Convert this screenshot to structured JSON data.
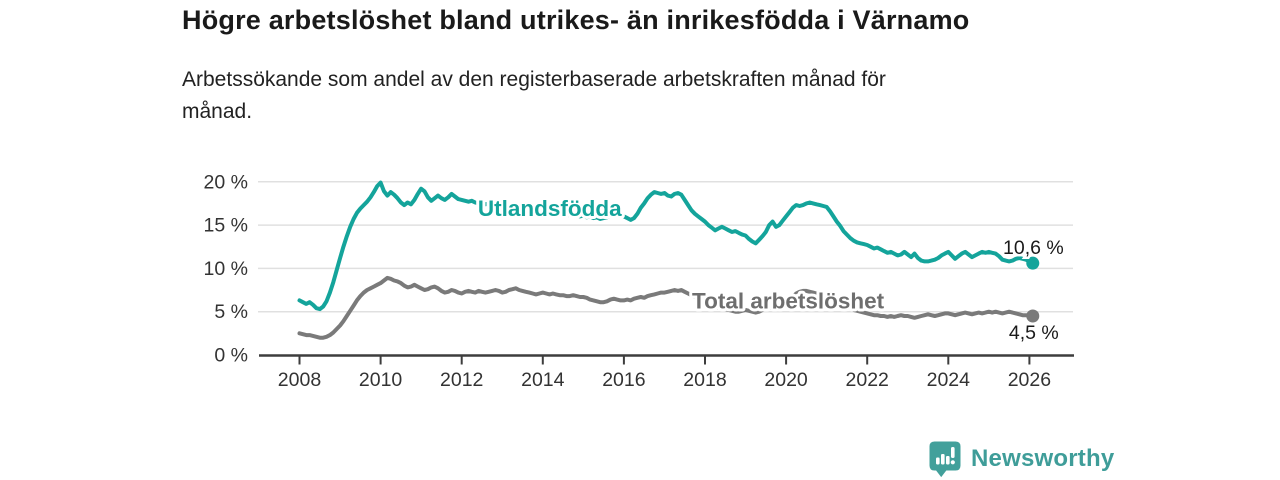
{
  "header": {
    "title": "Högre arbetslöshet bland utrikes- än inrikesfödda i Värnamo",
    "subtitle": "Arbetssökande som andel av den registerbaserade arbetskraften månad för\nmånad."
  },
  "branding": {
    "name": "Newsworthy",
    "icon": "bar-chart-bubble-icon",
    "color": "#3f9d99"
  },
  "chart_data": {
    "type": "line",
    "title": "Högre arbetslöshet bland utrikes- än inrikesfödda i Värnamo",
    "subtitle": "Arbetssökande som andel av den registerbaserade arbetskraften månad för månad.",
    "xlabel": "",
    "ylabel": "",
    "x_start_year": 2008,
    "x_step_months": 1,
    "x_end": "2026-02",
    "x_ticks": [
      2008,
      2010,
      2012,
      2014,
      2016,
      2018,
      2020,
      2022,
      2024,
      2026
    ],
    "y_ticks": [
      0,
      5,
      10,
      15,
      20
    ],
    "y_tick_suffix": " %",
    "ylim": [
      0,
      20
    ],
    "grid": "horizontal",
    "legend_position": "inline-labels",
    "colors": {
      "gridline": "#e0e0e0",
      "axis": "#3d3d3d",
      "tick_label": "#333333",
      "end_value_label": "#1a1a1a"
    },
    "series": [
      {
        "name": "Utlandsfödda",
        "color": "#14a49b",
        "label_color": "#14a49b",
        "end_label": "10,6 %",
        "end_value": 10.6,
        "label_at": {
          "x": 2012.4,
          "y": 16.05
        },
        "values": [
          6.3,
          6.1,
          5.9,
          6.1,
          5.8,
          5.4,
          5.3,
          5.6,
          6.2,
          7.2,
          8.4,
          9.8,
          11.2,
          12.5,
          13.7,
          14.8,
          15.7,
          16.4,
          16.9,
          17.3,
          17.7,
          18.2,
          18.8,
          19.5,
          19.9,
          18.9,
          18.4,
          18.8,
          18.5,
          18.1,
          17.6,
          17.3,
          17.6,
          17.4,
          17.9,
          18.6,
          19.2,
          18.9,
          18.2,
          17.8,
          18.1,
          18.4,
          18.1,
          17.9,
          18.2,
          18.6,
          18.3,
          18.0,
          17.9,
          17.8,
          17.7,
          17.8,
          17.6,
          17.5,
          17.6,
          17.4,
          17.5,
          17.3,
          17.4,
          17.2,
          17.3,
          17.1,
          17.2,
          17.0,
          16.9,
          17.0,
          16.8,
          16.9,
          16.7,
          16.8,
          16.6,
          16.5,
          16.6,
          16.4,
          16.5,
          16.3,
          16.4,
          16.2,
          16.3,
          16.1,
          16.2,
          16.0,
          16.1,
          16.0,
          16.1,
          15.9,
          16.0,
          15.8,
          15.9,
          15.7,
          15.8,
          15.9,
          16.1,
          16.3,
          16.4,
          16.2,
          16.0,
          15.8,
          15.6,
          15.8,
          16.3,
          17.0,
          17.5,
          18.1,
          18.5,
          18.8,
          18.7,
          18.6,
          18.7,
          18.4,
          18.3,
          18.6,
          18.7,
          18.5,
          17.9,
          17.3,
          16.7,
          16.3,
          16.0,
          15.7,
          15.4,
          15.0,
          14.7,
          14.4,
          14.6,
          14.8,
          14.6,
          14.4,
          14.2,
          14.3,
          14.1,
          13.9,
          13.8,
          13.4,
          13.1,
          12.9,
          13.3,
          13.7,
          14.2,
          15.0,
          15.4,
          14.8,
          15.0,
          15.5,
          16.0,
          16.5,
          17.0,
          17.3,
          17.2,
          17.3,
          17.5,
          17.6,
          17.5,
          17.4,
          17.3,
          17.2,
          17.1,
          16.6,
          16.0,
          15.4,
          14.9,
          14.3,
          13.9,
          13.5,
          13.2,
          13.0,
          12.9,
          12.8,
          12.7,
          12.5,
          12.3,
          12.4,
          12.2,
          12.0,
          11.8,
          11.9,
          11.7,
          11.5,
          11.6,
          11.9,
          11.6,
          11.3,
          11.7,
          11.2,
          10.9,
          10.8,
          10.8,
          10.9,
          11.0,
          11.2,
          11.5,
          11.7,
          11.9,
          11.5,
          11.1,
          11.4,
          11.7,
          11.9,
          11.6,
          11.3,
          11.5,
          11.7,
          11.9,
          11.8,
          11.9,
          11.8,
          11.7,
          11.4,
          11.0,
          10.9,
          10.8,
          10.9,
          11.1,
          11.2,
          11.1,
          11.0,
          10.8,
          10.6
        ]
      },
      {
        "name": "Total arbetslöshet",
        "color": "#7a7a7a",
        "label_color": "#6e6e6e",
        "end_label": "4,5 %",
        "end_value": 4.5,
        "label_at": {
          "x": 2017.68,
          "y": 5.35
        },
        "values": [
          2.5,
          2.4,
          2.3,
          2.3,
          2.2,
          2.1,
          2.0,
          2.0,
          2.1,
          2.3,
          2.6,
          3.0,
          3.4,
          3.9,
          4.5,
          5.1,
          5.7,
          6.3,
          6.8,
          7.2,
          7.5,
          7.7,
          7.9,
          8.1,
          8.3,
          8.6,
          8.9,
          8.8,
          8.6,
          8.5,
          8.3,
          8.0,
          7.8,
          7.9,
          8.1,
          7.9,
          7.7,
          7.5,
          7.6,
          7.8,
          7.9,
          7.7,
          7.4,
          7.2,
          7.3,
          7.5,
          7.4,
          7.2,
          7.1,
          7.3,
          7.4,
          7.3,
          7.2,
          7.4,
          7.3,
          7.2,
          7.3,
          7.4,
          7.5,
          7.4,
          7.2,
          7.3,
          7.5,
          7.6,
          7.7,
          7.5,
          7.4,
          7.3,
          7.2,
          7.1,
          7.0,
          7.1,
          7.2,
          7.1,
          7.0,
          7.1,
          7.0,
          6.9,
          6.9,
          6.8,
          6.8,
          6.9,
          6.8,
          6.7,
          6.7,
          6.6,
          6.4,
          6.3,
          6.2,
          6.1,
          6.1,
          6.2,
          6.4,
          6.5,
          6.4,
          6.3,
          6.3,
          6.4,
          6.3,
          6.5,
          6.6,
          6.7,
          6.6,
          6.8,
          6.9,
          7.0,
          7.1,
          7.2,
          7.2,
          7.3,
          7.4,
          7.5,
          7.4,
          7.5,
          7.3,
          7.1,
          6.9,
          6.7,
          6.5,
          6.3,
          6.1,
          5.9,
          5.7,
          5.6,
          5.5,
          5.4,
          5.3,
          5.2,
          5.1,
          5.0,
          5.0,
          5.1,
          5.2,
          5.1,
          5.0,
          4.9,
          5.0,
          5.2,
          5.4,
          5.5,
          5.4,
          5.5,
          5.7,
          5.9,
          6.1,
          6.3,
          6.7,
          7.1,
          7.3,
          7.4,
          7.4,
          7.3,
          7.2,
          7.1,
          7.0,
          6.9,
          6.8,
          6.6,
          6.4,
          6.2,
          6.0,
          5.8,
          5.6,
          5.4,
          5.2,
          5.1,
          5.0,
          4.9,
          4.8,
          4.7,
          4.6,
          4.6,
          4.5,
          4.5,
          4.4,
          4.5,
          4.4,
          4.5,
          4.6,
          4.5,
          4.5,
          4.4,
          4.3,
          4.4,
          4.5,
          4.6,
          4.7,
          4.6,
          4.5,
          4.6,
          4.7,
          4.8,
          4.8,
          4.7,
          4.6,
          4.7,
          4.8,
          4.9,
          4.8,
          4.7,
          4.8,
          4.9,
          4.8,
          4.9,
          5.0,
          4.9,
          5.0,
          4.9,
          4.8,
          4.9,
          5.0,
          4.9,
          4.8,
          4.7,
          4.6,
          4.6,
          4.6,
          4.5
        ]
      }
    ]
  }
}
